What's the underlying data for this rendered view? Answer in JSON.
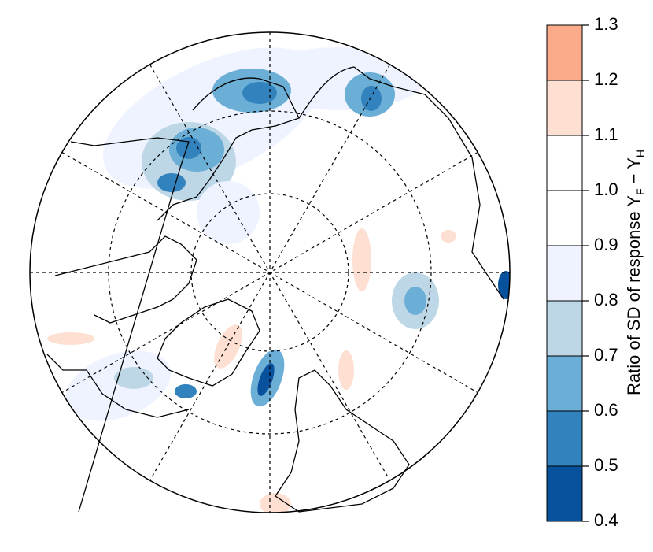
{
  "colorbar": {
    "label": [
      "Ratio of SD of response Y",
      "F",
      " − Y",
      "H"
    ],
    "ticks": [
      0.4,
      0.5,
      0.6,
      0.7,
      0.8,
      0.9,
      {
        "value": 1,
        "label": "1.0"
      },
      1.1,
      1.2,
      1.3
    ],
    "colors": [
      "#08519c",
      "#3182bd",
      "#6baed6",
      "#bdd7e7",
      "#eff3ff",
      "#ffffff",
      "#ffffff",
      "#fde0d2",
      "#fcab8a"
    ]
  }
}
